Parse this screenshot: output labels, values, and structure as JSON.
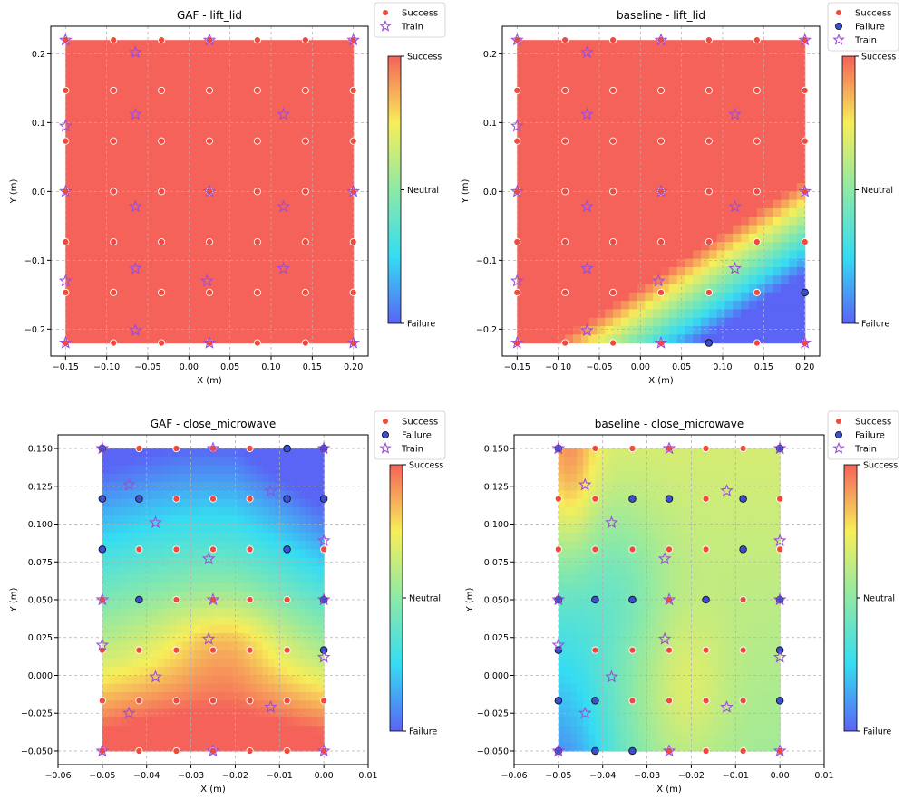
{
  "legend_labels": {
    "success": "Success",
    "failure": "Failure",
    "train": "Train"
  },
  "colorbar_labels": {
    "top": "Success",
    "mid": "Neutral",
    "bottom": "Failure"
  },
  "colors": {
    "success_marker": "#f04a3c",
    "failure_marker": "#3b4fd4",
    "train_marker": "#9b4dd6",
    "grid": "#b0b0b0"
  },
  "chart_data": [
    {
      "id": "gaf-lift-lid",
      "type": "scatter",
      "title": "GAF - lift_lid",
      "xlabel": "X (m)",
      "ylabel": "Y (m)",
      "xlim": [
        -0.168,
        0.218
      ],
      "ylim": [
        -0.239,
        0.24
      ],
      "xticks": [
        -0.15,
        -0.1,
        -0.05,
        0.0,
        0.05,
        0.1,
        0.15,
        0.2
      ],
      "xtick_labels": [
        "−0.15",
        "−0.10",
        "−0.05",
        "0.00",
        "0.05",
        "0.10",
        "0.15",
        "0.20"
      ],
      "yticks": [
        -0.2,
        -0.1,
        0.0,
        0.1,
        0.2
      ],
      "ytick_labels": [
        "−0.2",
        "−0.1",
        "0.0",
        "0.1",
        "0.2"
      ],
      "heatmap_extent": {
        "x": [
          -0.15,
          0.2
        ],
        "y": [
          -0.22,
          0.22
        ]
      },
      "heatmap_model": {
        "type": "uniform",
        "value": 1.0
      },
      "grid_x": [
        -0.15,
        -0.0917,
        -0.0333,
        0.025,
        0.0833,
        0.1417,
        0.2
      ],
      "grid_y": [
        -0.22,
        -0.1467,
        -0.0733,
        0.0,
        0.0733,
        0.1467,
        0.22
      ],
      "failures": [],
      "train": [
        [
          -0.15,
          0.22
        ],
        [
          0.025,
          0.22
        ],
        [
          0.2,
          0.22
        ],
        [
          -0.065,
          0.202
        ],
        [
          -0.15,
          0.095
        ],
        [
          -0.065,
          0.112
        ],
        [
          0.115,
          0.112
        ],
        [
          -0.15,
          0.0
        ],
        [
          0.025,
          0.0
        ],
        [
          0.2,
          0.0
        ],
        [
          -0.065,
          -0.022
        ],
        [
          0.115,
          -0.022
        ],
        [
          -0.15,
          -0.13
        ],
        [
          -0.065,
          -0.112
        ],
        [
          0.115,
          -0.112
        ],
        [
          0.022,
          -0.13
        ],
        [
          -0.065,
          -0.202
        ],
        [
          -0.15,
          -0.22
        ],
        [
          0.025,
          -0.22
        ],
        [
          0.2,
          -0.22
        ]
      ],
      "legend": [
        "Success",
        "Train"
      ]
    },
    {
      "id": "baseline-lift-lid",
      "type": "scatter",
      "title": "baseline - lift_lid",
      "xlabel": "X (m)",
      "ylabel": "Y (m)",
      "xlim": [
        -0.168,
        0.218
      ],
      "ylim": [
        -0.239,
        0.24
      ],
      "xticks": [
        -0.15,
        -0.1,
        -0.05,
        0.0,
        0.05,
        0.1,
        0.15,
        0.2
      ],
      "xtick_labels": [
        "−0.15",
        "−0.10",
        "−0.05",
        "0.00",
        "0.05",
        "0.10",
        "0.15",
        "0.20"
      ],
      "yticks": [
        -0.2,
        -0.1,
        0.0,
        0.1,
        0.2
      ],
      "ytick_labels": [
        "−0.2",
        "−0.1",
        "0.0",
        "0.1",
        "0.2"
      ],
      "heatmap_extent": {
        "x": [
          -0.15,
          0.2
        ],
        "y": [
          -0.22,
          0.22
        ]
      },
      "heatmap_model": {
        "type": "boundary"
      },
      "grid_x": [
        -0.15,
        -0.0917,
        -0.0333,
        0.025,
        0.0833,
        0.1417,
        0.2
      ],
      "grid_y": [
        -0.22,
        -0.1467,
        -0.0733,
        0.0,
        0.0733,
        0.1467,
        0.22
      ],
      "failures": [
        [
          0.0833,
          -0.22
        ],
        [
          0.2,
          -0.1467
        ]
      ],
      "train": [
        [
          -0.15,
          0.22
        ],
        [
          0.025,
          0.22
        ],
        [
          0.2,
          0.22
        ],
        [
          -0.065,
          0.202
        ],
        [
          -0.15,
          0.095
        ],
        [
          -0.065,
          0.112
        ],
        [
          0.115,
          0.112
        ],
        [
          -0.15,
          0.0
        ],
        [
          0.025,
          0.0
        ],
        [
          0.2,
          0.0
        ],
        [
          -0.065,
          -0.022
        ],
        [
          0.115,
          -0.022
        ],
        [
          -0.15,
          -0.13
        ],
        [
          -0.065,
          -0.112
        ],
        [
          0.115,
          -0.112
        ],
        [
          0.022,
          -0.13
        ],
        [
          -0.065,
          -0.202
        ],
        [
          -0.15,
          -0.22
        ],
        [
          0.025,
          -0.22
        ],
        [
          0.2,
          -0.22
        ]
      ],
      "legend": [
        "Success",
        "Failure",
        "Train"
      ]
    },
    {
      "id": "gaf-close-microwave",
      "type": "scatter",
      "title": "GAF - close_microwave",
      "xlabel": "X (m)",
      "ylabel": "Y (m)",
      "xlim": [
        -0.06,
        0.01
      ],
      "ylim": [
        -0.059,
        0.159
      ],
      "xticks": [
        -0.06,
        -0.05,
        -0.04,
        -0.03,
        -0.02,
        -0.01,
        0.0,
        0.01
      ],
      "xtick_labels": [
        "−0.06",
        "−0.05",
        "−0.04",
        "−0.03",
        "−0.02",
        "−0.01",
        "0.00",
        "0.01"
      ],
      "yticks": [
        -0.05,
        -0.025,
        0.0,
        0.025,
        0.05,
        0.075,
        0.1,
        0.125,
        0.15
      ],
      "ytick_labels": [
        "−0.050",
        "−0.025",
        "0.000",
        "0.025",
        "0.050",
        "0.075",
        "0.100",
        "0.125",
        "0.150"
      ],
      "heatmap_extent": {
        "x": [
          -0.05,
          0.0
        ],
        "y": [
          -0.05,
          0.15
        ]
      },
      "heatmap_model": {
        "type": "gaf"
      },
      "grid_x": [
        -0.05,
        -0.0417,
        -0.0333,
        -0.025,
        -0.0167,
        -0.0083,
        0.0
      ],
      "grid_y": [
        -0.05,
        -0.0167,
        0.0167,
        0.05,
        0.0833,
        0.1167,
        0.15
      ],
      "failures": [
        [
          -0.05,
          0.15
        ],
        [
          -0.0083,
          0.15
        ],
        [
          0.0,
          0.15
        ],
        [
          -0.05,
          0.1167
        ],
        [
          -0.0417,
          0.1167
        ],
        [
          -0.0083,
          0.1167
        ],
        [
          0.0,
          0.1167
        ],
        [
          -0.05,
          0.0833
        ],
        [
          -0.0083,
          0.0833
        ],
        [
          -0.0417,
          0.05
        ],
        [
          0.0,
          0.05
        ],
        [
          0.0,
          0.0167
        ]
      ],
      "train": [
        [
          -0.05,
          0.15
        ],
        [
          -0.025,
          0.15
        ],
        [
          0.0,
          0.15
        ],
        [
          -0.044,
          0.126
        ],
        [
          -0.012,
          0.122
        ],
        [
          -0.038,
          0.101
        ],
        [
          0.0,
          0.089
        ],
        [
          -0.026,
          0.077
        ],
        [
          -0.05,
          0.05
        ],
        [
          -0.025,
          0.05
        ],
        [
          0.0,
          0.05
        ],
        [
          -0.026,
          0.024
        ],
        [
          -0.05,
          0.02
        ],
        [
          0.0,
          0.012
        ],
        [
          -0.038,
          -0.001
        ],
        [
          -0.012,
          -0.021
        ],
        [
          -0.044,
          -0.025
        ],
        [
          -0.05,
          -0.05
        ],
        [
          -0.025,
          -0.05
        ],
        [
          0.0,
          -0.05
        ]
      ],
      "legend": [
        "Success",
        "Failure",
        "Train"
      ]
    },
    {
      "id": "baseline-close-microwave",
      "type": "scatter",
      "title": "baseline - close_microwave",
      "xlabel": "X (m)",
      "ylabel": "Y (m)",
      "xlim": [
        -0.06,
        0.01
      ],
      "ylim": [
        -0.059,
        0.159
      ],
      "xticks": [
        -0.06,
        -0.05,
        -0.04,
        -0.03,
        -0.02,
        -0.01,
        0.0,
        0.01
      ],
      "xtick_labels": [
        "−0.06",
        "−0.05",
        "−0.04",
        "−0.03",
        "−0.02",
        "−0.01",
        "0.00",
        "0.01"
      ],
      "yticks": [
        -0.05,
        -0.025,
        0.0,
        0.025,
        0.05,
        0.075,
        0.1,
        0.125,
        0.15
      ],
      "ytick_labels": [
        "−0.050",
        "−0.025",
        "0.000",
        "0.025",
        "0.050",
        "0.075",
        "0.100",
        "0.125",
        "0.150"
      ],
      "heatmap_extent": {
        "x": [
          -0.05,
          0.0
        ],
        "y": [
          -0.05,
          0.15
        ]
      },
      "heatmap_model": {
        "type": "baseline_micro"
      },
      "grid_x": [
        -0.05,
        -0.0417,
        -0.0333,
        -0.025,
        -0.0167,
        -0.0083,
        0.0
      ],
      "grid_y": [
        -0.05,
        -0.0167,
        0.0167,
        0.05,
        0.0833,
        0.1167,
        0.15
      ],
      "failures": [
        [
          -0.05,
          0.15
        ],
        [
          0.0,
          0.15
        ],
        [
          -0.0333,
          0.1167
        ],
        [
          -0.025,
          0.1167
        ],
        [
          -0.0083,
          0.1167
        ],
        [
          -0.0083,
          0.0833
        ],
        [
          -0.05,
          0.05
        ],
        [
          -0.0417,
          0.05
        ],
        [
          -0.0333,
          0.05
        ],
        [
          -0.0167,
          0.05
        ],
        [
          0.0,
          0.05
        ],
        [
          -0.05,
          0.0167
        ],
        [
          0.0,
          0.0167
        ],
        [
          -0.05,
          -0.0167
        ],
        [
          -0.0417,
          -0.0167
        ],
        [
          0.0,
          -0.0167
        ],
        [
          -0.05,
          -0.05
        ],
        [
          -0.0417,
          -0.05
        ],
        [
          -0.0333,
          -0.05
        ]
      ],
      "train": [
        [
          -0.05,
          0.15
        ],
        [
          -0.025,
          0.15
        ],
        [
          0.0,
          0.15
        ],
        [
          -0.044,
          0.126
        ],
        [
          -0.012,
          0.122
        ],
        [
          -0.038,
          0.101
        ],
        [
          0.0,
          0.089
        ],
        [
          -0.026,
          0.077
        ],
        [
          -0.05,
          0.05
        ],
        [
          -0.025,
          0.05
        ],
        [
          0.0,
          0.05
        ],
        [
          -0.026,
          0.024
        ],
        [
          -0.05,
          0.02
        ],
        [
          0.0,
          0.012
        ],
        [
          -0.038,
          -0.001
        ],
        [
          -0.012,
          -0.021
        ],
        [
          -0.044,
          -0.025
        ],
        [
          -0.05,
          -0.05
        ],
        [
          -0.025,
          -0.05
        ],
        [
          0.0,
          -0.05
        ]
      ],
      "legend": [
        "Success",
        "Failure",
        "Train"
      ]
    }
  ]
}
